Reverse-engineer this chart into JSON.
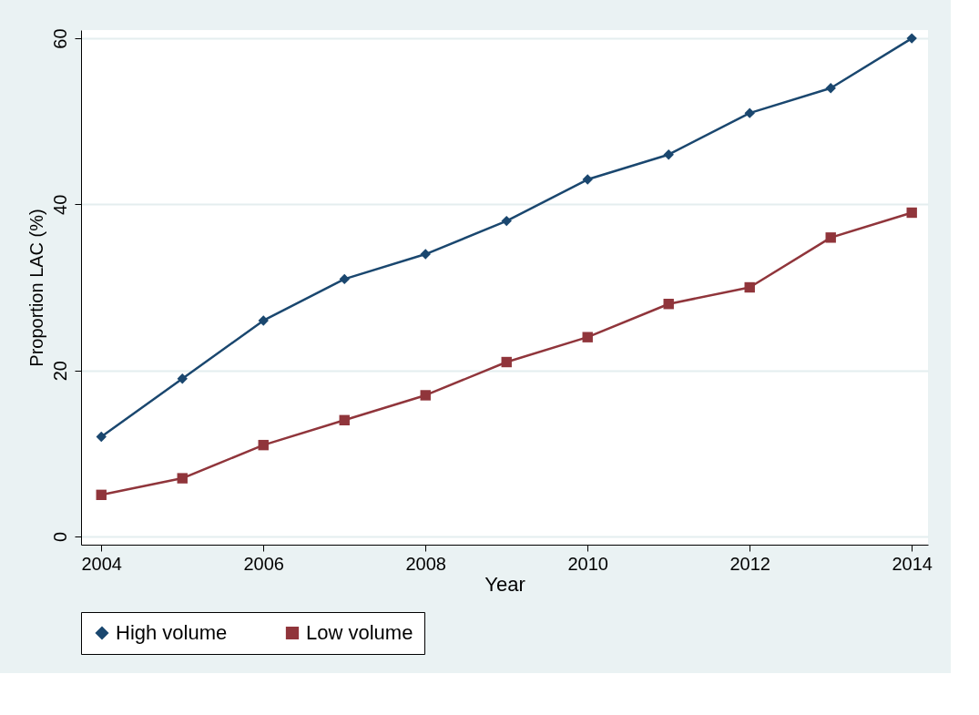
{
  "chart_data": {
    "type": "line",
    "xlabel": "Year",
    "ylabel": "Proportion LAC (%)",
    "x": [
      2004,
      2005,
      2006,
      2007,
      2008,
      2009,
      2010,
      2011,
      2012,
      2013,
      2014
    ],
    "series": [
      {
        "name": "High volume",
        "color": "#1a476f",
        "marker": "diamond",
        "values": [
          12,
          19,
          26,
          31,
          34,
          38,
          43,
          46,
          51,
          54,
          60
        ]
      },
      {
        "name": "Low volume",
        "color": "#90353b",
        "marker": "square",
        "values": [
          5,
          7,
          11,
          14,
          17,
          21,
          24,
          28,
          30,
          36,
          39
        ]
      }
    ],
    "xlim": [
      2003.75,
      2014.2
    ],
    "xticks": [
      2004,
      2006,
      2008,
      2010,
      2012,
      2014
    ],
    "ylim": [
      -1,
      61
    ],
    "yticks": [
      0,
      20,
      40,
      60
    ],
    "grid": "y",
    "legend": "bottom",
    "line_style": "solid"
  }
}
